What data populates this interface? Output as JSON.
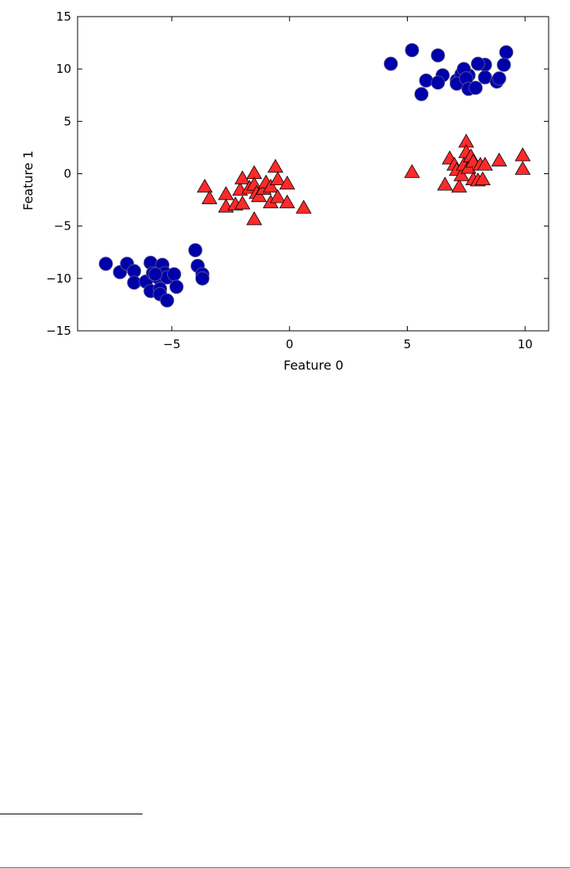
{
  "chart_data": {
    "type": "scatter",
    "title": "",
    "xlabel": "Feature 0",
    "ylabel": "Feature 1",
    "xlim": [
      -9,
      11
    ],
    "ylim": [
      -15,
      15
    ],
    "xticks": [
      -5,
      0,
      5,
      10
    ],
    "yticks": [
      -15,
      -10,
      -5,
      0,
      5,
      10,
      15
    ],
    "xtick_labels": [
      "−5",
      "0",
      "5",
      "10"
    ],
    "ytick_labels": [
      "−15",
      "−10",
      "−5",
      "0",
      "5",
      "10",
      "15"
    ],
    "grid": false,
    "series": [
      {
        "marker": "circle",
        "color": "#0000aa",
        "points": [
          [
            4.3,
            10.5
          ],
          [
            5.2,
            11.8
          ],
          [
            6.3,
            11.3
          ],
          [
            9.2,
            11.6
          ],
          [
            8.3,
            10.4
          ],
          [
            9.1,
            10.4
          ],
          [
            8.0,
            10.5
          ],
          [
            5.8,
            8.9
          ],
          [
            6.5,
            9.4
          ],
          [
            6.3,
            8.7
          ],
          [
            7.1,
            8.9
          ],
          [
            7.3,
            9.5
          ],
          [
            7.6,
            9.4
          ],
          [
            7.1,
            8.6
          ],
          [
            7.4,
            10.0
          ],
          [
            7.5,
            9.1
          ],
          [
            7.6,
            8.1
          ],
          [
            7.9,
            8.2
          ],
          [
            8.3,
            9.2
          ],
          [
            8.8,
            8.8
          ],
          [
            8.9,
            9.1
          ],
          [
            5.6,
            7.6
          ],
          [
            -7.8,
            -8.6
          ],
          [
            -7.2,
            -9.4
          ],
          [
            -6.9,
            -8.6
          ],
          [
            -6.6,
            -9.3
          ],
          [
            -6.6,
            -10.4
          ],
          [
            -6.1,
            -10.3
          ],
          [
            -5.9,
            -8.5
          ],
          [
            -5.8,
            -9.5
          ],
          [
            -5.9,
            -11.2
          ],
          [
            -5.6,
            -9.9
          ],
          [
            -5.5,
            -11.0
          ],
          [
            -5.4,
            -8.7
          ],
          [
            -5.3,
            -9.5
          ],
          [
            -5.5,
            -11.5
          ],
          [
            -5.2,
            -12.1
          ],
          [
            -5.2,
            -9.9
          ],
          [
            -4.9,
            -9.6
          ],
          [
            -4.8,
            -10.8
          ],
          [
            -5.7,
            -9.6
          ],
          [
            -4.0,
            -7.3
          ],
          [
            -3.9,
            -8.8
          ],
          [
            -3.7,
            -9.6
          ],
          [
            -3.7,
            -10.0
          ]
        ]
      },
      {
        "marker": "triangle",
        "color": "#ff2a2a",
        "points": [
          [
            -3.6,
            -1.3
          ],
          [
            -3.4,
            -2.4
          ],
          [
            -2.7,
            -2.0
          ],
          [
            -2.7,
            -3.2
          ],
          [
            -2.3,
            -3.0
          ],
          [
            -2.1,
            -1.6
          ],
          [
            -2.0,
            -0.5
          ],
          [
            -2.0,
            -2.9
          ],
          [
            -1.7,
            -1.4
          ],
          [
            -1.5,
            0.0
          ],
          [
            -1.5,
            -1.1
          ],
          [
            -1.5,
            -4.4
          ],
          [
            -1.4,
            -1.9
          ],
          [
            -1.3,
            -2.2
          ],
          [
            -1.1,
            -1.5
          ],
          [
            -1.0,
            -0.9
          ],
          [
            -0.8,
            -1.3
          ],
          [
            -0.8,
            -2.8
          ],
          [
            -0.6,
            0.6
          ],
          [
            -0.5,
            -0.6
          ],
          [
            -0.5,
            -2.3
          ],
          [
            -0.1,
            -1.0
          ],
          [
            -0.1,
            -2.8
          ],
          [
            0.6,
            -3.3
          ],
          [
            5.2,
            0.1
          ],
          [
            6.6,
            -1.1
          ],
          [
            6.8,
            1.4
          ],
          [
            7.0,
            0.8
          ],
          [
            7.1,
            0.3
          ],
          [
            7.2,
            -1.3
          ],
          [
            7.3,
            -0.2
          ],
          [
            7.4,
            0.8
          ],
          [
            7.5,
            3.0
          ],
          [
            7.5,
            2.0
          ],
          [
            7.6,
            0.5
          ],
          [
            7.7,
            1.6
          ],
          [
            7.8,
            -0.6
          ],
          [
            7.8,
            1.1
          ],
          [
            8.0,
            -0.7
          ],
          [
            8.1,
            0.8
          ],
          [
            8.2,
            -0.6
          ],
          [
            8.3,
            0.8
          ],
          [
            8.9,
            1.2
          ],
          [
            9.9,
            0.4
          ],
          [
            9.9,
            1.7
          ]
        ]
      }
    ]
  }
}
